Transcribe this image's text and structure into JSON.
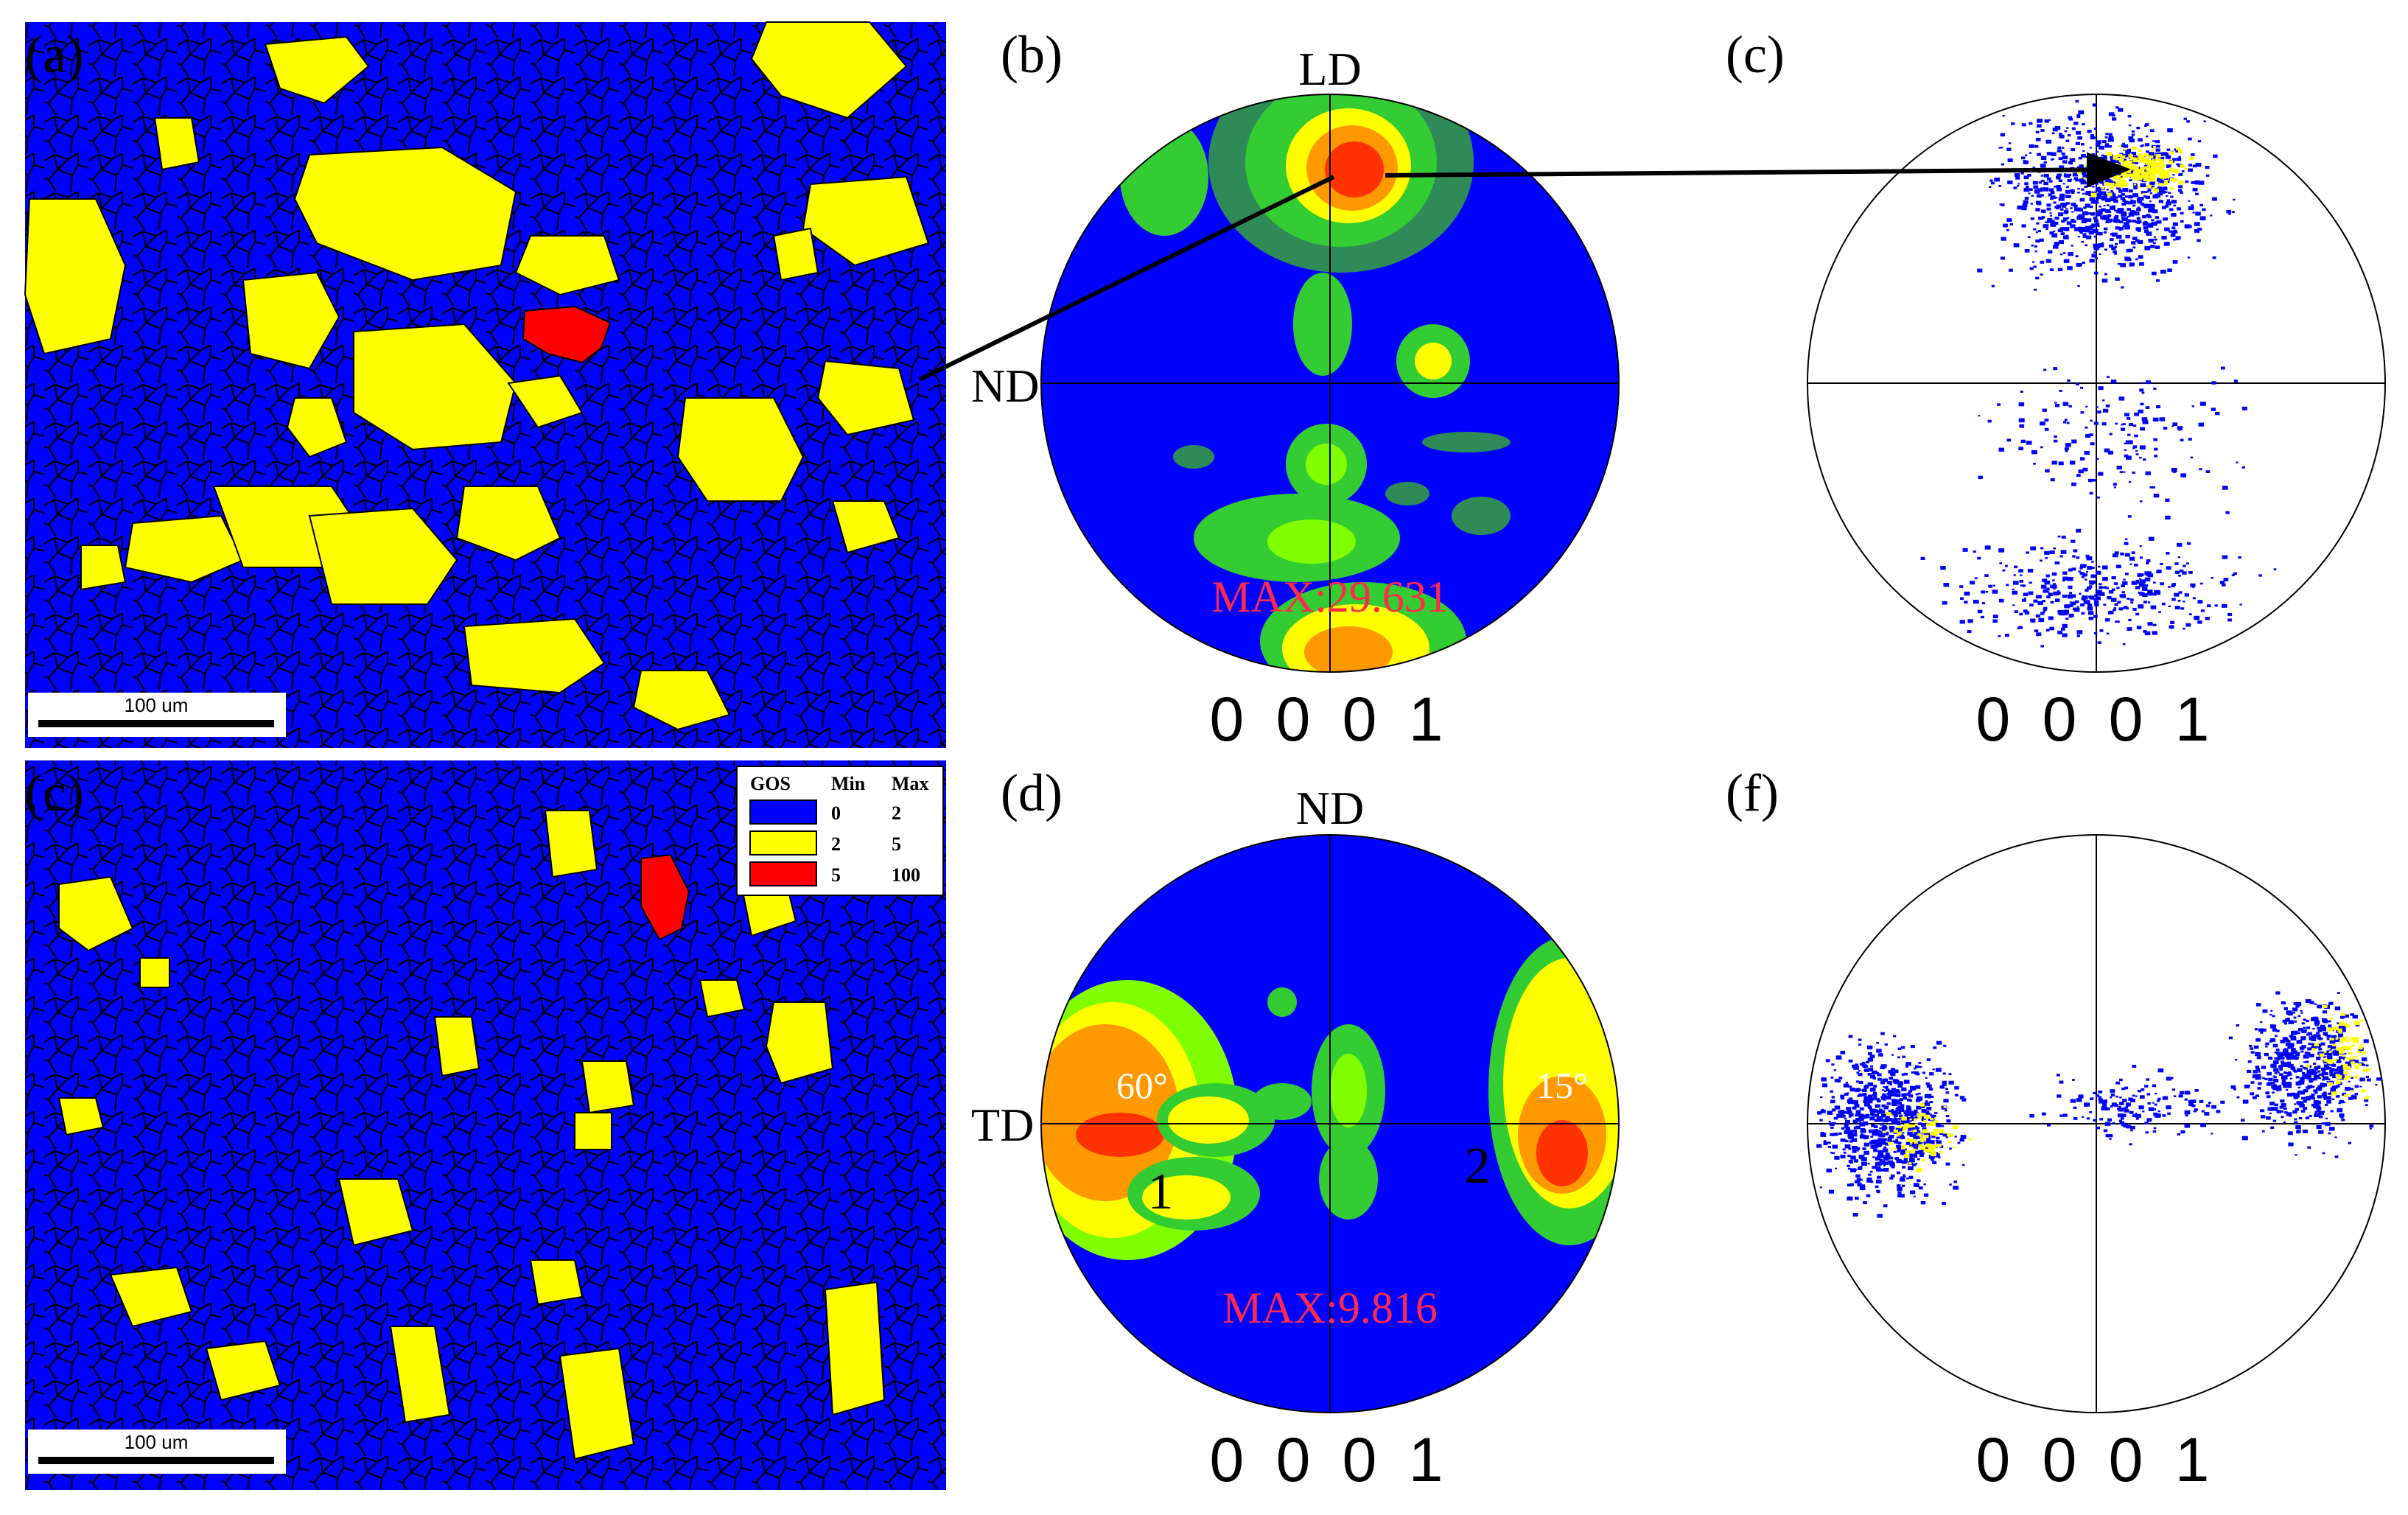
{
  "panels": {
    "a": "(a)",
    "b": "(b)",
    "c_top": "(c)",
    "c_bottom": "(c)",
    "d": "(d)",
    "f": "(f)"
  },
  "scale_bar": {
    "top": "100 um",
    "bottom": "100 um"
  },
  "legend": {
    "header_gos": "GOS",
    "header_min": "Min",
    "header_max": "Max",
    "rows": [
      {
        "min": "0",
        "max": "2",
        "color": "#0000ff"
      },
      {
        "min": "2",
        "max": "5",
        "color": "#ffff00"
      },
      {
        "min": "5",
        "max": "100",
        "color": "#ff0000"
      }
    ]
  },
  "pole_figures": {
    "b": {
      "top_axis": "LD",
      "left_axis": "ND",
      "max": "MAX:29.631",
      "caption": "0 0 0 1"
    },
    "c": {
      "caption": "0 0 0 1"
    },
    "d": {
      "top_axis": "ND",
      "left_axis": "TD",
      "max": "MAX:9.816",
      "caption": "0 0 0 1",
      "angle_1": "60°",
      "angle_2": "15°",
      "peak_1": "1",
      "peak_2": "2"
    },
    "f": {
      "caption": "0 0 0 1"
    }
  },
  "colors": {
    "map_background": "#0000ff",
    "grain_yellow": "#ffff00",
    "grain_red": "#ff0000",
    "contour_levels": [
      "#0000ff",
      "#2e8b57",
      "#33cc33",
      "#7fff00",
      "#ffff00",
      "#ff9900",
      "#ff3300"
    ]
  }
}
